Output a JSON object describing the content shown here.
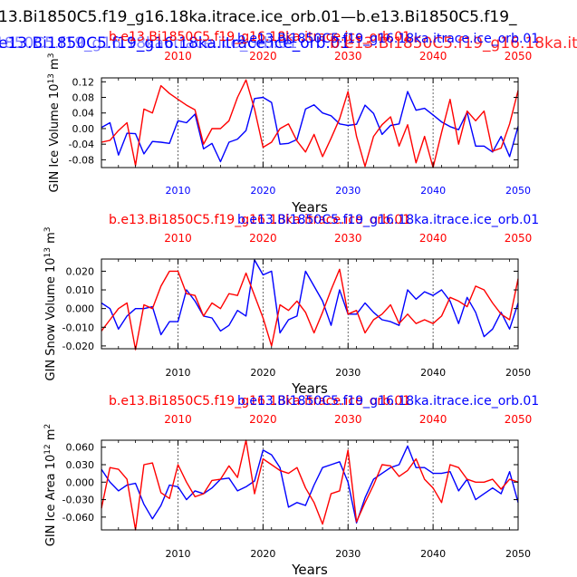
{
  "figure": {
    "title_black": "13.Bi1850C5.f19_g16.18ka.itrace.ice_orb.01—b.e13.Bi1850C5.f19_",
    "title_blue": "e13.Bi1850C5.f19_g16.18ka.itrace.ice_orb.01",
    "title_red": "b.e13.Bi1850C5.f19_g16.18ka.itra",
    "title_blue_ghost": "b.e13.Bi1850C5.f19_g16.18ka.itrace.ice_orb.01",
    "colors": {
      "red": "#ff0000",
      "blue": "#0000ff",
      "black": "#000000",
      "grid": "#555555"
    }
  },
  "chart_data": [
    {
      "type": "line",
      "ylabel_base": "GIN Ice Volume 10",
      "ylabel_exp": "13",
      "ylabel_unit": " m",
      "ylabel_pow": "3",
      "xlabel": "Years",
      "xlim": [
        2001,
        2050
      ],
      "ylim": [
        -0.1,
        0.13
      ],
      "yticks": [
        0.12,
        0.08,
        0.04,
        0.0,
        -0.04,
        -0.08
      ],
      "ytick_labels": [
        "0.12",
        "0.08",
        "0.04",
        "0.00",
        "-0.04",
        "-0.08"
      ],
      "xticks": [
        2010,
        2020,
        2030,
        2040,
        2050
      ],
      "xtick_labels": [
        "2010",
        "2020",
        "2030",
        "2040",
        "2050"
      ],
      "top_label_red": "b.e13.Bi1850C5.f19_g16.18ka.itrace.ice_orb.01",
      "top_label_blue": "b.e13.Bi1850C5.f19_g16.18ka.itrace.ice_orb.01",
      "series": [
        {
          "name": "blue",
          "color": "#0000ff",
          "x": [
            2001,
            2002,
            2003,
            2004,
            2005,
            2006,
            2007,
            2008,
            2009,
            2010,
            2011,
            2012,
            2013,
            2014,
            2015,
            2016,
            2017,
            2018,
            2019,
            2020,
            2021,
            2022,
            2023,
            2024,
            2025,
            2026,
            2027,
            2028,
            2029,
            2030,
            2031,
            2032,
            2033,
            2034,
            2035,
            2036,
            2037,
            2038,
            2039,
            2040,
            2041,
            2042,
            2043,
            2044,
            2045,
            2046,
            2047,
            2048,
            2049,
            2050
          ],
          "values": [
            0.003,
            0.015,
            -0.068,
            -0.012,
            -0.013,
            -0.065,
            -0.033,
            -0.035,
            -0.038,
            0.02,
            0.015,
            0.037,
            -0.052,
            -0.038,
            -0.085,
            -0.035,
            -0.027,
            -0.005,
            0.077,
            0.08,
            0.067,
            -0.04,
            -0.038,
            -0.028,
            0.05,
            0.061,
            0.04,
            0.033,
            0.012,
            0.008,
            0.011,
            0.06,
            0.039,
            -0.015,
            0.008,
            0.012,
            0.095,
            0.047,
            0.052,
            0.035,
            0.017,
            0.005,
            -0.003,
            0.042,
            -0.045,
            -0.045,
            -0.06,
            -0.02,
            -0.072,
            0.006
          ]
        },
        {
          "name": "red",
          "color": "#ff0000",
          "x": [
            2001,
            2002,
            2003,
            2004,
            2005,
            2006,
            2007,
            2008,
            2009,
            2010,
            2011,
            2012,
            2013,
            2014,
            2015,
            2016,
            2017,
            2018,
            2019,
            2020,
            2021,
            2022,
            2023,
            2024,
            2025,
            2026,
            2027,
            2028,
            2029,
            2030,
            2031,
            2032,
            2033,
            2034,
            2035,
            2036,
            2037,
            2038,
            2039,
            2040,
            2041,
            2042,
            2043,
            2044,
            2045,
            2046,
            2047,
            2048,
            2049,
            2050
          ],
          "values": [
            -0.035,
            -0.03,
            -0.005,
            0.015,
            -0.095,
            0.05,
            0.04,
            0.11,
            0.09,
            0.075,
            0.06,
            0.048,
            -0.04,
            0.0,
            0.0,
            0.02,
            0.08,
            0.125,
            0.05,
            -0.048,
            -0.035,
            0.0,
            0.012,
            -0.032,
            -0.06,
            -0.015,
            -0.072,
            -0.025,
            0.025,
            0.095,
            -0.02,
            -0.097,
            -0.02,
            0.01,
            0.03,
            -0.045,
            0.01,
            -0.088,
            -0.02,
            -0.1,
            -0.01,
            0.075,
            -0.04,
            0.045,
            0.02,
            0.045,
            -0.058,
            -0.05,
            0.012,
            0.098
          ]
        }
      ]
    },
    {
      "type": "line",
      "ylabel_base": "GIN Snow Volume 10",
      "ylabel_exp": "13",
      "ylabel_unit": " m",
      "ylabel_pow": "3",
      "xlabel": "Years",
      "xlim": [
        2001,
        2050
      ],
      "ylim": [
        -0.0215,
        0.0265
      ],
      "yticks": [
        0.02,
        0.01,
        0.0,
        -0.01,
        -0.02
      ],
      "ytick_labels": [
        "0.020",
        "0.010",
        "0.000",
        "-0.010",
        "-0.020"
      ],
      "xticks": [
        2010,
        2020,
        2030,
        2040,
        2050
      ],
      "xtick_labels": [
        "2010",
        "2020",
        "2030",
        "2040",
        "2050"
      ],
      "top_label_red": "b.e13.Bi1850C5.f19_g16.18ka.itrace.ice_orb.01",
      "top_label_blue": "b.e13.Bi1850C5.f19_g16.18ka.itrace.ice_orb.01",
      "series": [
        {
          "name": "blue",
          "color": "#0000ff",
          "x": [
            2001,
            2002,
            2003,
            2004,
            2005,
            2006,
            2007,
            2008,
            2009,
            2010,
            2011,
            2012,
            2013,
            2014,
            2015,
            2016,
            2017,
            2018,
            2019,
            2020,
            2021,
            2022,
            2023,
            2024,
            2025,
            2026,
            2027,
            2028,
            2029,
            2030,
            2031,
            2032,
            2033,
            2034,
            2035,
            2036,
            2037,
            2038,
            2039,
            2040,
            2041,
            2042,
            2043,
            2044,
            2045,
            2046,
            2047,
            2048,
            2049,
            2050
          ],
          "values": [
            0.003,
            0.0,
            -0.011,
            -0.004,
            0.0,
            0.0,
            0.001,
            -0.014,
            -0.007,
            -0.007,
            0.01,
            0.004,
            -0.004,
            -0.005,
            -0.012,
            -0.009,
            -0.001,
            -0.004,
            0.026,
            0.018,
            0.02,
            -0.013,
            -0.006,
            -0.004,
            0.02,
            0.012,
            0.004,
            -0.009,
            0.01,
            -0.003,
            -0.003,
            0.003,
            -0.002,
            -0.006,
            -0.007,
            -0.009,
            0.01,
            0.005,
            0.009,
            0.007,
            0.01,
            0.004,
            -0.008,
            0.006,
            -0.002,
            -0.015,
            -0.011,
            -0.002,
            -0.011,
            0.003
          ]
        },
        {
          "name": "red",
          "color": "#ff0000",
          "x": [
            2001,
            2002,
            2003,
            2004,
            2005,
            2006,
            2007,
            2008,
            2009,
            2010,
            2011,
            2012,
            2013,
            2014,
            2015,
            2016,
            2017,
            2018,
            2019,
            2020,
            2021,
            2022,
            2023,
            2024,
            2025,
            2026,
            2027,
            2028,
            2029,
            2030,
            2031,
            2032,
            2033,
            2034,
            2035,
            2036,
            2037,
            2038,
            2039,
            2040,
            2041,
            2042,
            2043,
            2044,
            2045,
            2046,
            2047,
            2048,
            2049,
            2050
          ],
          "values": [
            -0.012,
            -0.006,
            0.0,
            0.003,
            -0.022,
            0.002,
            0.0,
            0.012,
            0.02,
            0.02,
            0.008,
            0.007,
            -0.004,
            0.003,
            0.0,
            0.008,
            0.007,
            0.019,
            0.007,
            -0.005,
            -0.02,
            0.002,
            -0.001,
            0.004,
            -0.002,
            -0.013,
            -0.002,
            0.01,
            0.021,
            -0.003,
            -0.001,
            -0.013,
            -0.006,
            -0.003,
            0.002,
            -0.008,
            -0.003,
            -0.008,
            -0.006,
            -0.008,
            -0.004,
            0.006,
            0.004,
            0.001,
            0.012,
            0.01,
            0.003,
            -0.003,
            -0.006,
            0.016
          ]
        }
      ]
    },
    {
      "type": "line",
      "ylabel_base": "GIN Ice Area 10",
      "ylabel_exp": "12",
      "ylabel_unit": " m",
      "ylabel_pow": "2",
      "xlabel": "Years",
      "xlim": [
        2001,
        2050
      ],
      "ylim": [
        -0.082,
        0.072
      ],
      "yticks": [
        0.06,
        0.03,
        0.0,
        -0.03,
        -0.06
      ],
      "ytick_labels": [
        "0.060",
        "0.030",
        "0.000",
        "-0.030",
        "-0.060"
      ],
      "xticks": [
        2010,
        2020,
        2030,
        2040,
        2050
      ],
      "xtick_labels": [
        "2010",
        "2020",
        "2030",
        "2040",
        "2050"
      ],
      "top_label_red": "b.e13.Bi1850C5.f19_g16.18ka.itrace.ice_orb.01",
      "top_label_blue": "b.e13.Bi1850C5.f19_g16.18ka.itrace.ice_orb.01",
      "series": [
        {
          "name": "blue",
          "color": "#0000ff",
          "x": [
            2001,
            2002,
            2003,
            2004,
            2005,
            2006,
            2007,
            2008,
            2009,
            2010,
            2011,
            2012,
            2013,
            2014,
            2015,
            2016,
            2017,
            2018,
            2019,
            2020,
            2021,
            2022,
            2023,
            2024,
            2025,
            2026,
            2027,
            2028,
            2029,
            2030,
            2031,
            2032,
            2033,
            2034,
            2035,
            2036,
            2037,
            2038,
            2039,
            2040,
            2041,
            2042,
            2043,
            2044,
            2045,
            2046,
            2047,
            2048,
            2049,
            2050
          ],
          "values": [
            0.022,
            0.0,
            -0.015,
            -0.005,
            -0.002,
            -0.038,
            -0.063,
            -0.04,
            -0.005,
            -0.008,
            -0.03,
            -0.015,
            -0.02,
            -0.01,
            0.005,
            0.007,
            -0.015,
            -0.008,
            0.002,
            0.055,
            0.047,
            0.025,
            -0.043,
            -0.035,
            -0.04,
            -0.005,
            0.025,
            0.03,
            0.035,
            0.0,
            -0.07,
            -0.027,
            0.005,
            0.015,
            0.025,
            0.03,
            0.062,
            0.025,
            0.025,
            0.015,
            0.015,
            0.018,
            -0.015,
            0.005,
            -0.03,
            -0.02,
            -0.01,
            -0.02,
            0.018,
            -0.035
          ]
        },
        {
          "name": "red",
          "color": "#ff0000",
          "x": [
            2001,
            2002,
            2003,
            2004,
            2005,
            2006,
            2007,
            2008,
            2009,
            2010,
            2011,
            2012,
            2013,
            2014,
            2015,
            2016,
            2017,
            2018,
            2019,
            2020,
            2021,
            2022,
            2023,
            2024,
            2025,
            2026,
            2027,
            2028,
            2029,
            2030,
            2031,
            2032,
            2033,
            2034,
            2035,
            2036,
            2037,
            2038,
            2039,
            2040,
            2041,
            2042,
            2043,
            2044,
            2045,
            2046,
            2047,
            2048,
            2049,
            2050
          ],
          "values": [
            -0.045,
            0.025,
            0.022,
            0.005,
            -0.082,
            0.03,
            0.033,
            -0.018,
            -0.028,
            0.03,
            0.0,
            -0.025,
            -0.02,
            0.003,
            0.005,
            0.028,
            0.008,
            0.072,
            -0.02,
            0.04,
            0.03,
            0.02,
            0.015,
            0.025,
            -0.01,
            -0.035,
            -0.072,
            -0.02,
            -0.015,
            0.055,
            -0.068,
            -0.035,
            -0.005,
            0.03,
            0.028,
            0.01,
            0.02,
            0.04,
            0.005,
            -0.01,
            -0.035,
            0.03,
            0.025,
            0.005,
            0.0,
            0.0,
            0.005,
            -0.012,
            0.005,
            0.0
          ]
        }
      ]
    }
  ]
}
